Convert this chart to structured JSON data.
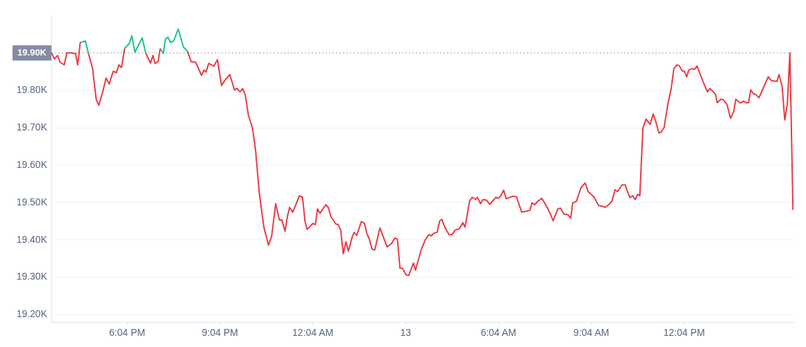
{
  "chart_data": {
    "type": "line",
    "x": [
      "--10-12T15:37",
      "--10-12T15:43",
      "--10-12T15:49",
      "--10-12T15:54",
      "--10-12T16:02",
      "--10-12T16:07",
      "--10-12T16:16",
      "--10-12T16:24",
      "--10-12T16:28",
      "--10-12T16:33",
      "--10-12T16:43",
      "--10-12T16:49",
      "--10-12T16:57",
      "--10-12T17:04",
      "--10-12T17:09",
      "--10-12T17:17",
      "--10-12T17:23",
      "--10-12T17:29",
      "--10-12T17:37",
      "--10-12T17:43",
      "--10-12T17:48",
      "--10-12T17:53",
      "--10-12T17:59",
      "--10-12T18:08",
      "--10-12T18:13",
      "--10-12T18:19",
      "--10-12T18:33",
      "--10-12T18:40",
      "--10-12T18:49",
      "--10-12T18:54",
      "--10-12T18:58",
      "--10-12T19:04",
      "--10-12T19:08",
      "--10-12T19:14",
      "--10-12T19:18",
      "--10-12T19:23",
      "--10-12T19:28",
      "--10-12T19:34",
      "--10-12T19:43",
      "--10-12T19:53",
      "--10-12T20:01",
      "--10-12T20:08",
      "--10-12T20:17",
      "--10-12T20:28",
      "--10-12T20:33",
      "--10-12T20:37",
      "--10-12T20:42",
      "--10-12T20:52",
      "--10-12T20:59",
      "--10-12T21:07",
      "--10-12T21:14",
      "--10-12T21:23",
      "--10-12T21:32",
      "--10-12T21:37",
      "--10-12T21:43",
      "--10-12T21:48",
      "--10-12T21:53",
      "--10-12T21:59",
      "--10-12T22:07",
      "--10-12T22:13",
      "--10-12T22:20",
      "--10-12T22:29",
      "--10-12T22:38",
      "--10-12T22:44",
      "--10-12T22:52",
      "--10-12T22:59",
      "--10-12T23:04",
      "--10-12T23:10",
      "--10-12T23:15",
      "--10-12T23:19",
      "--10-12T23:25",
      "--10-12T23:38",
      "--10-12T23:44",
      "--10-12T23:49",
      "--10-12T23:53",
      "--10-13T00:04",
      "--10-13T00:09",
      "--10-13T00:13",
      "--10-13T00:18",
      "--10-13T00:29",
      "--10-13T00:34",
      "--10-13T00:39",
      "--10-13T00:49",
      "--10-13T00:53",
      "--10-13T00:58",
      "--10-13T01:03",
      "--10-13T01:08",
      "--10-13T01:13",
      "--10-13T01:20",
      "--10-13T01:24",
      "--10-13T01:29",
      "--10-13T01:38",
      "--10-13T01:44",
      "--10-13T01:49",
      "--10-13T01:53",
      "--10-13T01:59",
      "--10-13T02:04",
      "--10-13T02:14",
      "--10-13T02:28",
      "--10-13T02:37",
      "--10-13T02:43",
      "--10-13T02:48",
      "--10-13T02:53",
      "--10-13T02:58",
      "--10-13T03:05",
      "--10-13T03:10",
      "--10-13T03:19",
      "--10-13T03:23",
      "--10-13T03:34",
      "--10-13T03:42",
      "--10-13T03:49",
      "--10-13T03:54",
      "--10-13T03:59",
      "--10-13T04:05",
      "--10-13T04:10",
      "--10-13T04:14",
      "--10-13T04:20",
      "--10-13T04:28",
      "--10-13T04:34",
      "--10-13T04:40",
      "--10-13T04:48",
      "--10-13T04:55",
      "--10-13T04:59",
      "--10-13T05:08",
      "--10-13T05:13",
      "--10-13T05:20",
      "--10-13T05:23",
      "--10-13T05:29",
      "--10-13T05:34",
      "--10-13T05:41",
      "--10-13T05:47",
      "--10-13T05:59",
      "--10-13T06:03",
      "--10-13T06:08",
      "--10-13T06:14",
      "--10-13T06:19",
      "--10-13T06:32",
      "--10-13T06:39",
      "--10-13T06:49",
      "--10-13T07:05",
      "--10-13T07:09",
      "--10-13T07:14",
      "--10-13T07:20",
      "--10-13T07:28",
      "--10-13T07:38",
      "--10-13T07:44",
      "--10-13T07:50",
      "--10-13T07:59",
      "--10-13T08:04",
      "--10-13T08:11",
      "--10-13T08:19",
      "--10-13T08:24",
      "--10-13T08:28",
      "--10-13T08:35",
      "--10-13T08:44",
      "--10-13T08:52",
      "--10-13T08:58",
      "--10-13T09:09",
      "--10-13T09:18",
      "--10-13T09:25",
      "--10-13T09:31",
      "--10-13T09:40",
      "--10-13T09:44",
      "--10-13T09:50",
      "--10-13T09:55",
      "--10-13T10:03",
      "--10-13T10:10",
      "--10-13T10:13",
      "--10-13T10:19",
      "--10-13T10:24",
      "--10-13T10:29",
      "--10-13T10:34",
      "--10-13T10:38",
      "--10-13T10:44",
      "--10-13T10:50",
      "--10-13T10:58",
      "--10-13T11:04",
      "--10-13T11:08",
      "--10-13T11:15",
      "--10-13T11:19",
      "--10-13T11:25",
      "--10-13T11:32",
      "--10-13T11:39",
      "--10-13T11:44",
      "--10-13T11:50",
      "--10-13T11:55",
      "--10-13T12:00",
      "--10-13T12:04",
      "--10-13T12:09",
      "--10-13T12:13",
      "--10-13T12:19",
      "--10-13T12:24",
      "--10-13T12:29",
      "--10-13T12:41",
      "--10-13T12:49",
      "--10-13T12:54",
      "--10-13T12:59",
      "--10-13T13:05",
      "--10-13T13:08",
      "--10-13T13:15",
      "--10-13T13:20",
      "--10-13T13:27",
      "--10-13T13:34",
      "--10-13T13:40",
      "--10-13T13:44",
      "--10-13T13:53",
      "--10-13T13:59",
      "--10-13T14:04",
      "--10-13T14:09",
      "--10-13T14:13",
      "--10-13T14:19",
      "--10-13T14:23",
      "--10-13T14:29",
      "--10-13T14:34",
      "--10-13T14:47",
      "--10-13T14:53",
      "--10-13T15:04",
      "--10-13T15:08",
      "--10-13T15:14",
      "--10-13T15:19",
      "--10-13T15:24",
      "--10-13T15:29",
      "--10-13T15:35"
    ],
    "series": [
      {
        "color": "#ea3943",
        "values": [
          19.901,
          19.884,
          19.893,
          19.875,
          19.868,
          19.9,
          19.9,
          19.898,
          19.868,
          19.928,
          null,
          19.898,
          19.858,
          19.775,
          19.76,
          19.798,
          19.833,
          19.817,
          19.851,
          19.847,
          19.868,
          19.861,
          19.912,
          null,
          null,
          null,
          null,
          19.9,
          19.873,
          19.893,
          19.872,
          19.877,
          19.912,
          null,
          null,
          null,
          null,
          null,
          null,
          null,
          19.904,
          19.877,
          19.875,
          19.84,
          19.854,
          19.849,
          19.872,
          19.865,
          19.882,
          19.813,
          19.828,
          19.842,
          19.801,
          19.805,
          19.796,
          19.805,
          19.787,
          19.734,
          19.699,
          19.639,
          19.527,
          19.434,
          19.386,
          19.409,
          19.497,
          19.453,
          19.453,
          19.423,
          19.465,
          19.487,
          19.474,
          19.518,
          19.514,
          19.448,
          19.428,
          19.444,
          19.441,
          19.483,
          19.471,
          19.494,
          19.487,
          19.462,
          19.442,
          19.441,
          19.426,
          19.363,
          19.395,
          19.37,
          19.407,
          19.42,
          19.412,
          19.449,
          19.444,
          19.416,
          19.404,
          19.375,
          19.373,
          19.432,
          19.381,
          19.391,
          19.405,
          19.402,
          19.324,
          19.324,
          19.306,
          19.305,
          19.338,
          19.319,
          19.373,
          19.4,
          19.414,
          19.411,
          19.418,
          19.42,
          19.451,
          19.455,
          19.434,
          19.414,
          19.414,
          19.426,
          19.43,
          19.446,
          19.434,
          19.504,
          19.514,
          19.508,
          19.514,
          19.497,
          19.508,
          19.506,
          19.495,
          19.514,
          19.511,
          19.517,
          19.533,
          19.51,
          19.517,
          19.515,
          19.474,
          19.479,
          19.499,
          19.494,
          19.503,
          19.511,
          19.488,
          19.471,
          19.451,
          19.483,
          19.485,
          19.469,
          19.467,
          19.458,
          19.499,
          19.503,
          19.54,
          19.552,
          19.529,
          19.515,
          19.492,
          19.49,
          19.487,
          19.497,
          19.504,
          19.534,
          19.529,
          19.547,
          19.547,
          19.533,
          19.513,
          19.518,
          19.508,
          19.522,
          19.518,
          19.699,
          19.723,
          19.709,
          19.737,
          19.721,
          19.686,
          19.688,
          19.7,
          19.76,
          19.806,
          19.858,
          19.868,
          19.865,
          19.852,
          19.852,
          19.836,
          19.854,
          19.858,
          19.856,
          19.865,
          19.822,
          19.796,
          19.805,
          19.798,
          19.789,
          19.767,
          19.776,
          19.775,
          19.762,
          19.725,
          19.743,
          19.776,
          19.766,
          19.771,
          19.767,
          19.767,
          19.801,
          19.79,
          19.789,
          19.78,
          19.796,
          19.836,
          19.826,
          19.824,
          19.842,
          19.81,
          19.721,
          19.762,
          19.9,
          19.48
        ]
      },
      {
        "color": "#16c784",
        "x": [
          "--10-12T16:33",
          "--10-12T16:43",
          "--10-12T16:49",
          "--10-12T16:57",
          "--10-12T17:59",
          "--10-12T18:08",
          "--10-12T18:13",
          "--10-12T18:19",
          "--10-12T18:33",
          "--10-12T18:40",
          "--10-12T18:49",
          "--10-12T19:08",
          "--10-12T19:14",
          "--10-12T19:18",
          "--10-12T19:23",
          "--10-12T19:28",
          "--10-12T19:34",
          "--10-12T19:43",
          "--10-12T19:53",
          "--10-12T20:01"
        ],
        "values": [
          19.928,
          19.932,
          19.898,
          null,
          19.912,
          19.925,
          19.946,
          19.902,
          19.94,
          19.9,
          null,
          19.912,
          19.898,
          19.937,
          19.942,
          19.928,
          19.932,
          19.964,
          19.916,
          19.904
        ]
      }
    ],
    "xlim": [
      "--10-12T15:37",
      "--10-13T15:36"
    ],
    "xticks": [
      {
        "value": "--10-12T18:04",
        "label": "6:04 PM"
      },
      {
        "value": "--10-12T21:04",
        "label": "9:04 PM"
      },
      {
        "value": "--10-13T00:04",
        "label": "12:04 AM"
      },
      {
        "value": "--10-13T03:04",
        "label": "13"
      },
      {
        "value": "--10-13T06:04",
        "label": "6:04 AM"
      },
      {
        "value": "--10-13T09:04",
        "label": "9:04 AM"
      },
      {
        "value": "--10-13T12:04",
        "label": "12:04 PM"
      }
    ],
    "ylim": [
      19.18,
      20.0
    ],
    "yticks": [
      {
        "value": 19.2,
        "label": "19.20K"
      },
      {
        "value": 19.3,
        "label": "19.30K"
      },
      {
        "value": 19.4,
        "label": "19.40K"
      },
      {
        "value": 19.5,
        "label": "19.50K"
      },
      {
        "value": 19.6,
        "label": "19.60K"
      },
      {
        "value": 19.7,
        "label": "19.70K"
      },
      {
        "value": 19.8,
        "label": "19.80K"
      }
    ],
    "ref_lines": [
      {
        "axis": "y",
        "value": 19.9,
        "label": "19.90K",
        "color": "#9aa0ab",
        "line_style": "dotted"
      }
    ],
    "grid": "y"
  }
}
